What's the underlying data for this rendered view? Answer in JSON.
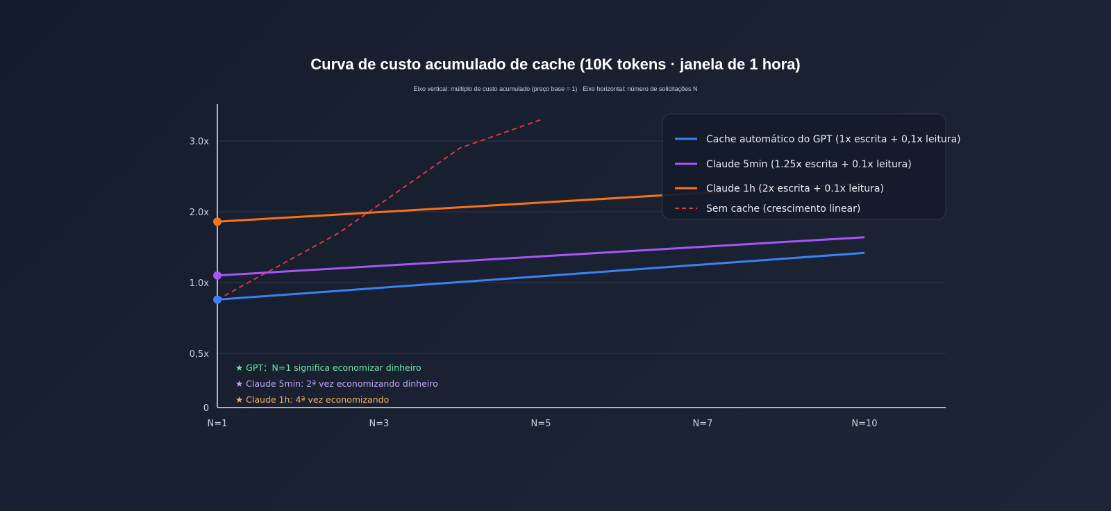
{
  "chart_data": {
    "type": "line",
    "title": "Curva de custo acumulado de cache (10K tokens · janela de 1 hora)",
    "subtitle": "Eixo vertical: múltiplo de custo acumulado (preço base = 1) · Eixo horizontal: número de solicitações N",
    "x_ticks": [
      {
        "x": 1,
        "label": "N=1"
      },
      {
        "x": 3,
        "label": "N=3"
      },
      {
        "x": 5,
        "label": "N=5"
      },
      {
        "x": 7,
        "label": "N=7"
      },
      {
        "x": 10,
        "label": "N=10"
      }
    ],
    "y_ticks": [
      {
        "v": 0,
        "label": "0"
      },
      {
        "v": 0.5,
        "label": "0,5x"
      },
      {
        "v": 1.0,
        "label": "1.0x"
      },
      {
        "v": 2.0,
        "label": "2.0x"
      },
      {
        "v": 3.0,
        "label": "3.0x"
      }
    ],
    "series": [
      {
        "name": "Cache automático do GPT (1x escrita + 0,1x leitura)",
        "color": "#3b82f6",
        "dash": false,
        "marker": true,
        "points": [
          [
            1,
            0.88
          ],
          [
            10,
            1.42
          ]
        ]
      },
      {
        "name": "Claude 5min (1.25x escrita + 0.1x leitura)",
        "color": "#a855f7",
        "dash": false,
        "marker": true,
        "points": [
          [
            1,
            1.1
          ],
          [
            10,
            1.64
          ]
        ]
      },
      {
        "name": "Claude 1h (2x escrita + 0.1x leitura)",
        "color": "#f97316",
        "dash": false,
        "marker": true,
        "points": [
          [
            1,
            1.86
          ],
          [
            10,
            2.4
          ]
        ]
      },
      {
        "name": "Sem cache (crescimento linear)",
        "color": "#dc3545",
        "dash": true,
        "marker": false,
        "points": [
          [
            1,
            0.88
          ],
          [
            2.5,
            1.7
          ],
          [
            4,
            2.9
          ],
          [
            5,
            3.3
          ]
        ]
      }
    ],
    "annotations": [
      {
        "text": "★ GPT：N=1 significa economizar dinheiro",
        "color": "#6ee7a8"
      },
      {
        "text": "★ Claude 5min: 2ª vez economizando dinheiro",
        "color": "#c4a5f5"
      },
      {
        "text": "★ Claude 1h: 4ª vez economizando",
        "color": "#f5b266"
      }
    ],
    "legend_position": "top-right",
    "grid": true
  }
}
